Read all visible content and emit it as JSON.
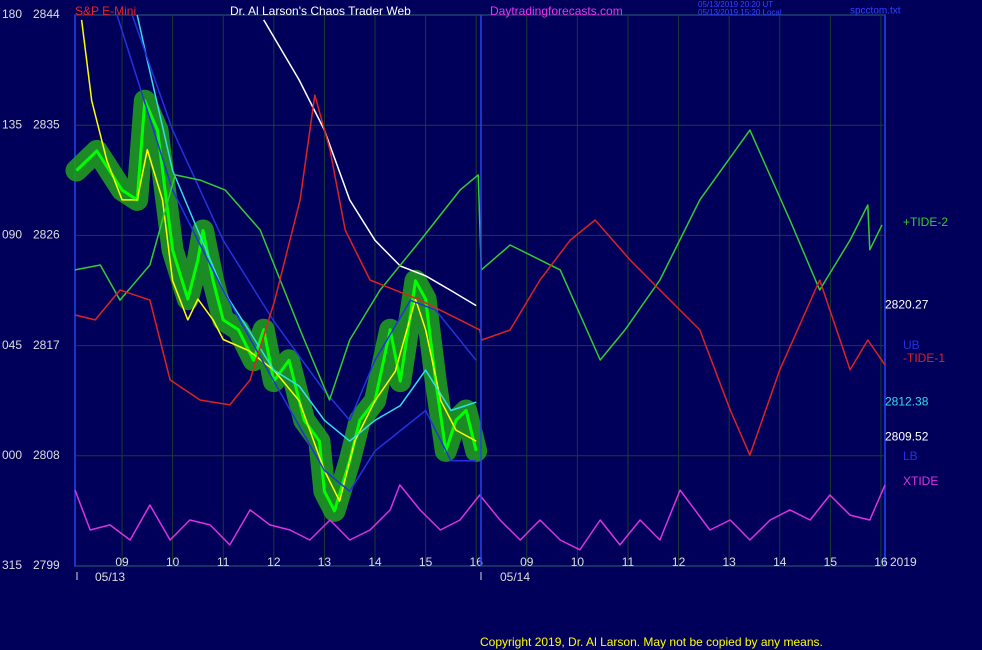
{
  "chart_data": {
    "type": "line",
    "title": "Dr. Al Larson's Chaos Trader Web",
    "instrument": "S&P E-Mini",
    "site": "Daytradingforecasts.com",
    "timestamps": [
      "05/13/2019 20:20 UT",
      "05/13/2019 15:20 Local"
    ],
    "file": "spcctom.txt",
    "copyright": "Copyright 2019, Dr. Al Larson. May not be copied by any means.",
    "dates": [
      "05/13",
      "05/14",
      "2019"
    ],
    "xlim": [
      8.07,
      24.08
    ],
    "xticks": [
      {
        "value": 9,
        "label": "09"
      },
      10,
      11,
      12,
      13,
      14,
      15,
      16,
      {
        "value": 17,
        "label": "09"
      },
      {
        "value": 18,
        "label": "10"
      },
      {
        "value": 19,
        "label": "11"
      },
      {
        "value": 20,
        "label": "12"
      },
      {
        "value": 21,
        "label": "13"
      },
      {
        "value": 22,
        "label": "14"
      },
      {
        "value": 23,
        "label": "15"
      },
      {
        "value": 24,
        "label": "16"
      }
    ],
    "ylim": [
      2799,
      2844
    ],
    "yticks": [
      2799,
      2808,
      2817,
      2826,
      2835,
      2844
    ],
    "y2lim": [
      -45,
      180
    ],
    "y2ticks": [
      {
        "value": -45,
        "label": "315"
      },
      {
        "value": 0,
        "label": "000"
      },
      {
        "value": 45,
        "label": "045"
      },
      {
        "value": 90,
        "label": "090"
      },
      135,
      180
    ],
    "grid": true,
    "series": [
      {
        "color": "#00ff00",
        "halo": "#1f9a1f",
        "x": [
          8.1,
          8.5,
          9.0,
          9.3,
          9.45,
          9.7,
          10.0,
          10.3,
          10.5,
          10.6,
          10.8,
          11.0,
          11.3,
          11.6,
          11.8,
          12.0,
          12.3,
          12.6,
          12.9,
          13.0,
          13.2,
          13.5,
          13.7,
          14.0,
          14.3,
          14.5,
          14.8,
          15.0,
          15.2,
          15.4,
          15.6,
          15.8,
          16.0
        ],
        "values": [
          2831.3,
          2832.9,
          2829.7,
          2828.9,
          2837.0,
          2834.6,
          2824.8,
          2820.8,
          2824.0,
          2826.4,
          2822.3,
          2819.1,
          2818.3,
          2815.8,
          2818.3,
          2814.1,
          2815.8,
          2810.9,
          2809.2,
          2805.1,
          2803.5,
          2807.6,
          2810.9,
          2812.5,
          2818.3,
          2814.1,
          2822.3,
          2820.8,
          2814.1,
          2808.4,
          2810.9,
          2811.7,
          2808.4
        ]
      },
      {
        "color": "#ffff00",
        "x": [
          8.2,
          8.4,
          8.7,
          9.0,
          9.3,
          9.5,
          9.8,
          10.0,
          10.3,
          10.5,
          10.8,
          11.0,
          11.5,
          12.0,
          12.5,
          13.0,
          13.3,
          13.6,
          14.0,
          14.4,
          14.8,
          15.0,
          15.3,
          15.6,
          16.0
        ],
        "values": [
          2843.6,
          2837.0,
          2832.1,
          2828.9,
          2828.9,
          2833.0,
          2828.9,
          2822.3,
          2819.1,
          2820.8,
          2819.1,
          2817.5,
          2816.6,
          2815.0,
          2812.5,
          2806.8,
          2804.3,
          2809.2,
          2812.5,
          2814.9,
          2820.8,
          2818.3,
          2812.5,
          2810.1,
          2809.2
        ]
      },
      {
        "color": "#33ddee",
        "x": [
          9.3,
          9.5,
          10.0,
          10.5,
          11.0,
          11.5,
          12.0,
          12.5,
          13.0,
          13.5,
          14.0,
          14.5,
          15.0,
          15.5,
          16.0
        ],
        "values": [
          2844.0,
          2840.3,
          2831.3,
          2826.4,
          2821.5,
          2818.3,
          2815.0,
          2813.7,
          2810.9,
          2809.2,
          2810.9,
          2812.1,
          2815.0,
          2811.7,
          2812.38
        ]
      },
      {
        "color": "#ffffff",
        "x": [
          11.8,
          12.5,
          13.0,
          13.5,
          14.0,
          14.5,
          15.0,
          15.5,
          16.0
        ],
        "values": [
          2843.6,
          2838.7,
          2834.6,
          2828.9,
          2825.6,
          2823.5,
          2822.7,
          2821.5,
          2820.27
        ]
      },
      {
        "name": "UB",
        "color": "#2233dd",
        "x": [
          9.2,
          10.0,
          11.0,
          12.0,
          13.0,
          13.5,
          14.0,
          14.7,
          15.2,
          16.0
        ],
        "values": [
          2844.0,
          2834.6,
          2825.6,
          2819.0,
          2813.3,
          2810.9,
          2815.8,
          2820.7,
          2819.9,
          2815.8
        ]
      },
      {
        "name": "LB",
        "color": "#2233dd",
        "x": [
          8.9,
          10.0,
          11.0,
          12.0,
          13.0,
          13.5,
          14.0,
          15.0,
          15.5,
          16.0
        ],
        "values": [
          2844.0,
          2829.7,
          2821.5,
          2814.1,
          2806.8,
          2805.1,
          2808.4,
          2811.7,
          2807.6,
          2807.6
        ]
      },
      {
        "name": "+TIDE-2",
        "color": "#33cc33",
        "axis": "y2",
        "x": [
          8.07,
          8.57,
          8.96,
          9.55,
          10.05,
          10.54,
          11.04,
          11.73,
          12.52,
          13.1,
          13.5,
          14.1,
          14.9,
          15.68,
          16.04,
          16.1,
          16.67,
          17.66,
          18.45,
          18.94,
          19.63,
          20.42,
          21.41,
          22.2,
          22.79,
          23.39,
          23.74,
          23.78,
          24.02
        ],
        "values": [
          75.9,
          77.9,
          63.6,
          77.9,
          114.7,
          112.6,
          108.5,
          92.2,
          51.4,
          22.8,
          47.3,
          67.7,
          88.1,
          108.5,
          114.7,
          75.9,
          86.1,
          75.9,
          39.1,
          51.4,
          71.8,
          104.5,
          133.0,
          96.3,
          67.7,
          88.1,
          102.4,
          84.1,
          94.3
        ]
      },
      {
        "name": "-TIDE-1",
        "color": "#dd2222",
        "axis": "y2",
        "x": [
          8.07,
          8.47,
          8.96,
          9.55,
          9.95,
          10.54,
          11.13,
          11.53,
          12.02,
          12.52,
          12.81,
          13.11,
          13.41,
          13.9,
          14.89,
          15.68,
          16.07,
          16.11,
          16.67,
          17.26,
          17.86,
          18.35,
          19.04,
          19.63,
          20.42,
          21.02,
          21.41,
          22.0,
          22.79,
          23.39,
          23.74,
          24.08
        ],
        "values": [
          57.5,
          55.5,
          67.7,
          63.6,
          31.0,
          22.8,
          20.8,
          31.0,
          63.6,
          104.5,
          147.3,
          124.9,
          92.2,
          71.8,
          63.6,
          55.5,
          51.4,
          47.3,
          51.4,
          71.8,
          88.1,
          96.3,
          80.0,
          67.7,
          51.4,
          18.7,
          0.3,
          35.1,
          71.8,
          35.1,
          47.3,
          37.1
        ]
      },
      {
        "name": "XTIDE",
        "color": "#dd33dd",
        "axis": "y2",
        "x": [
          8.07,
          8.37,
          8.76,
          9.16,
          9.55,
          9.95,
          10.34,
          10.74,
          11.13,
          11.53,
          11.92,
          12.32,
          12.71,
          13.11,
          13.5,
          13.9,
          14.3,
          14.49,
          14.89,
          15.29,
          15.68,
          16.07,
          16.47,
          16.87,
          17.26,
          17.66,
          18.05,
          18.45,
          18.84,
          19.24,
          19.63,
          20.03,
          20.62,
          21.02,
          21.41,
          21.81,
          22.2,
          22.6,
          22.99,
          23.39,
          23.78,
          24.08
        ],
        "values": [
          -14.0,
          -30.3,
          -28.2,
          -34.4,
          -20.1,
          -34.4,
          -26.2,
          -28.2,
          -36.4,
          -22.1,
          -28.2,
          -30.3,
          -34.4,
          -26.2,
          -34.4,
          -30.3,
          -22.1,
          -11.9,
          -22.1,
          -30.3,
          -26.2,
          -16.0,
          -26.2,
          -34.4,
          -26.2,
          -34.4,
          -38.4,
          -26.2,
          -36.4,
          -26.2,
          -34.4,
          -14.0,
          -30.3,
          -26.2,
          -34.4,
          -26.2,
          -22.1,
          -26.2,
          -16.0,
          -24.2,
          -26.2,
          -11.9
        ]
      }
    ],
    "price_labels": [
      {
        "value": 2820.27,
        "color": "#ffffff"
      },
      {
        "value": 2812.38,
        "color": "#33ddee"
      },
      {
        "value": 2809.52,
        "color": "#ffffff"
      }
    ]
  }
}
